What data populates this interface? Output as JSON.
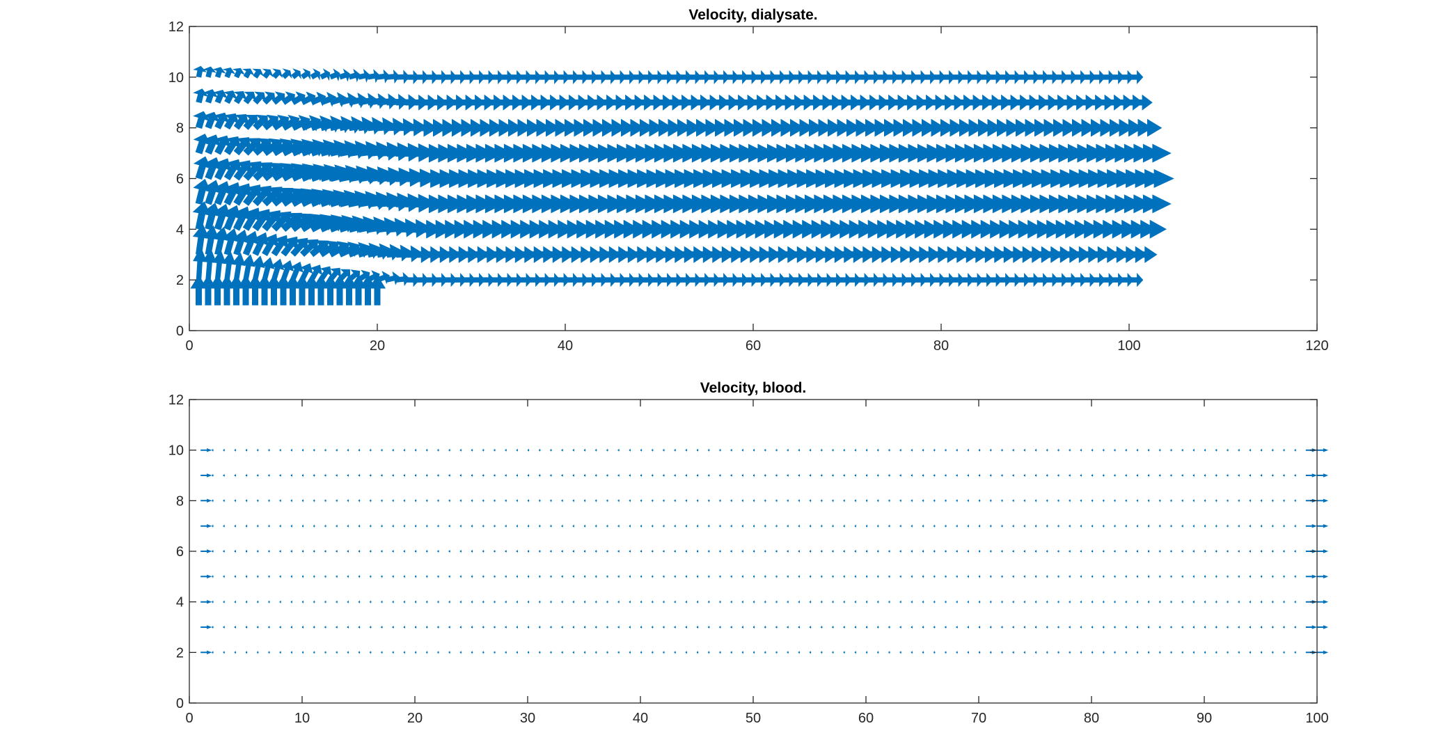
{
  "chart_data": [
    {
      "type": "quiver",
      "title": "Velocity, dialysate.",
      "xlabel": "",
      "ylabel": "",
      "xlim": [
        0,
        120
      ],
      "ylim": [
        0,
        12
      ],
      "xticks": [
        0,
        20,
        40,
        60,
        80,
        100,
        120
      ],
      "yticks": [
        0,
        2,
        4,
        6,
        8,
        10,
        12
      ],
      "grid": false,
      "color": "#0072BD",
      "grid_x_range": [
        1,
        100
      ],
      "grid_x_step": 1,
      "rows_y": [
        1,
        2,
        3,
        4,
        5,
        6,
        7,
        8,
        9,
        10
      ],
      "inlet_region": {
        "x": [
          1,
          20
        ],
        "y": 1,
        "direction": "up",
        "magnitude": 1.2
      },
      "flow_direction": "+x",
      "row_max_speed": {
        "2": 1.5,
        "3": 3.0,
        "4": 4.0,
        "5": 4.5,
        "6": 4.8,
        "7": 4.5,
        "8": 3.5,
        "9": 2.5,
        "10": 1.5
      }
    },
    {
      "type": "quiver",
      "title": "Velocity, blood.",
      "xlabel": "",
      "ylabel": "",
      "xlim": [
        0,
        100
      ],
      "ylim": [
        0,
        12
      ],
      "xticks": [
        0,
        10,
        20,
        30,
        40,
        50,
        60,
        70,
        80,
        90,
        100
      ],
      "yticks": [
        0,
        2,
        4,
        6,
        8,
        10,
        12
      ],
      "grid": false,
      "color": "#0072BD",
      "grid_x_range": [
        1,
        100
      ],
      "grid_x_step": 1,
      "rows_y": [
        2,
        3,
        4,
        5,
        6,
        7,
        8,
        9,
        10
      ],
      "flow_direction": "+x",
      "speed": 0.15,
      "edge_speed": 1.0
    }
  ]
}
